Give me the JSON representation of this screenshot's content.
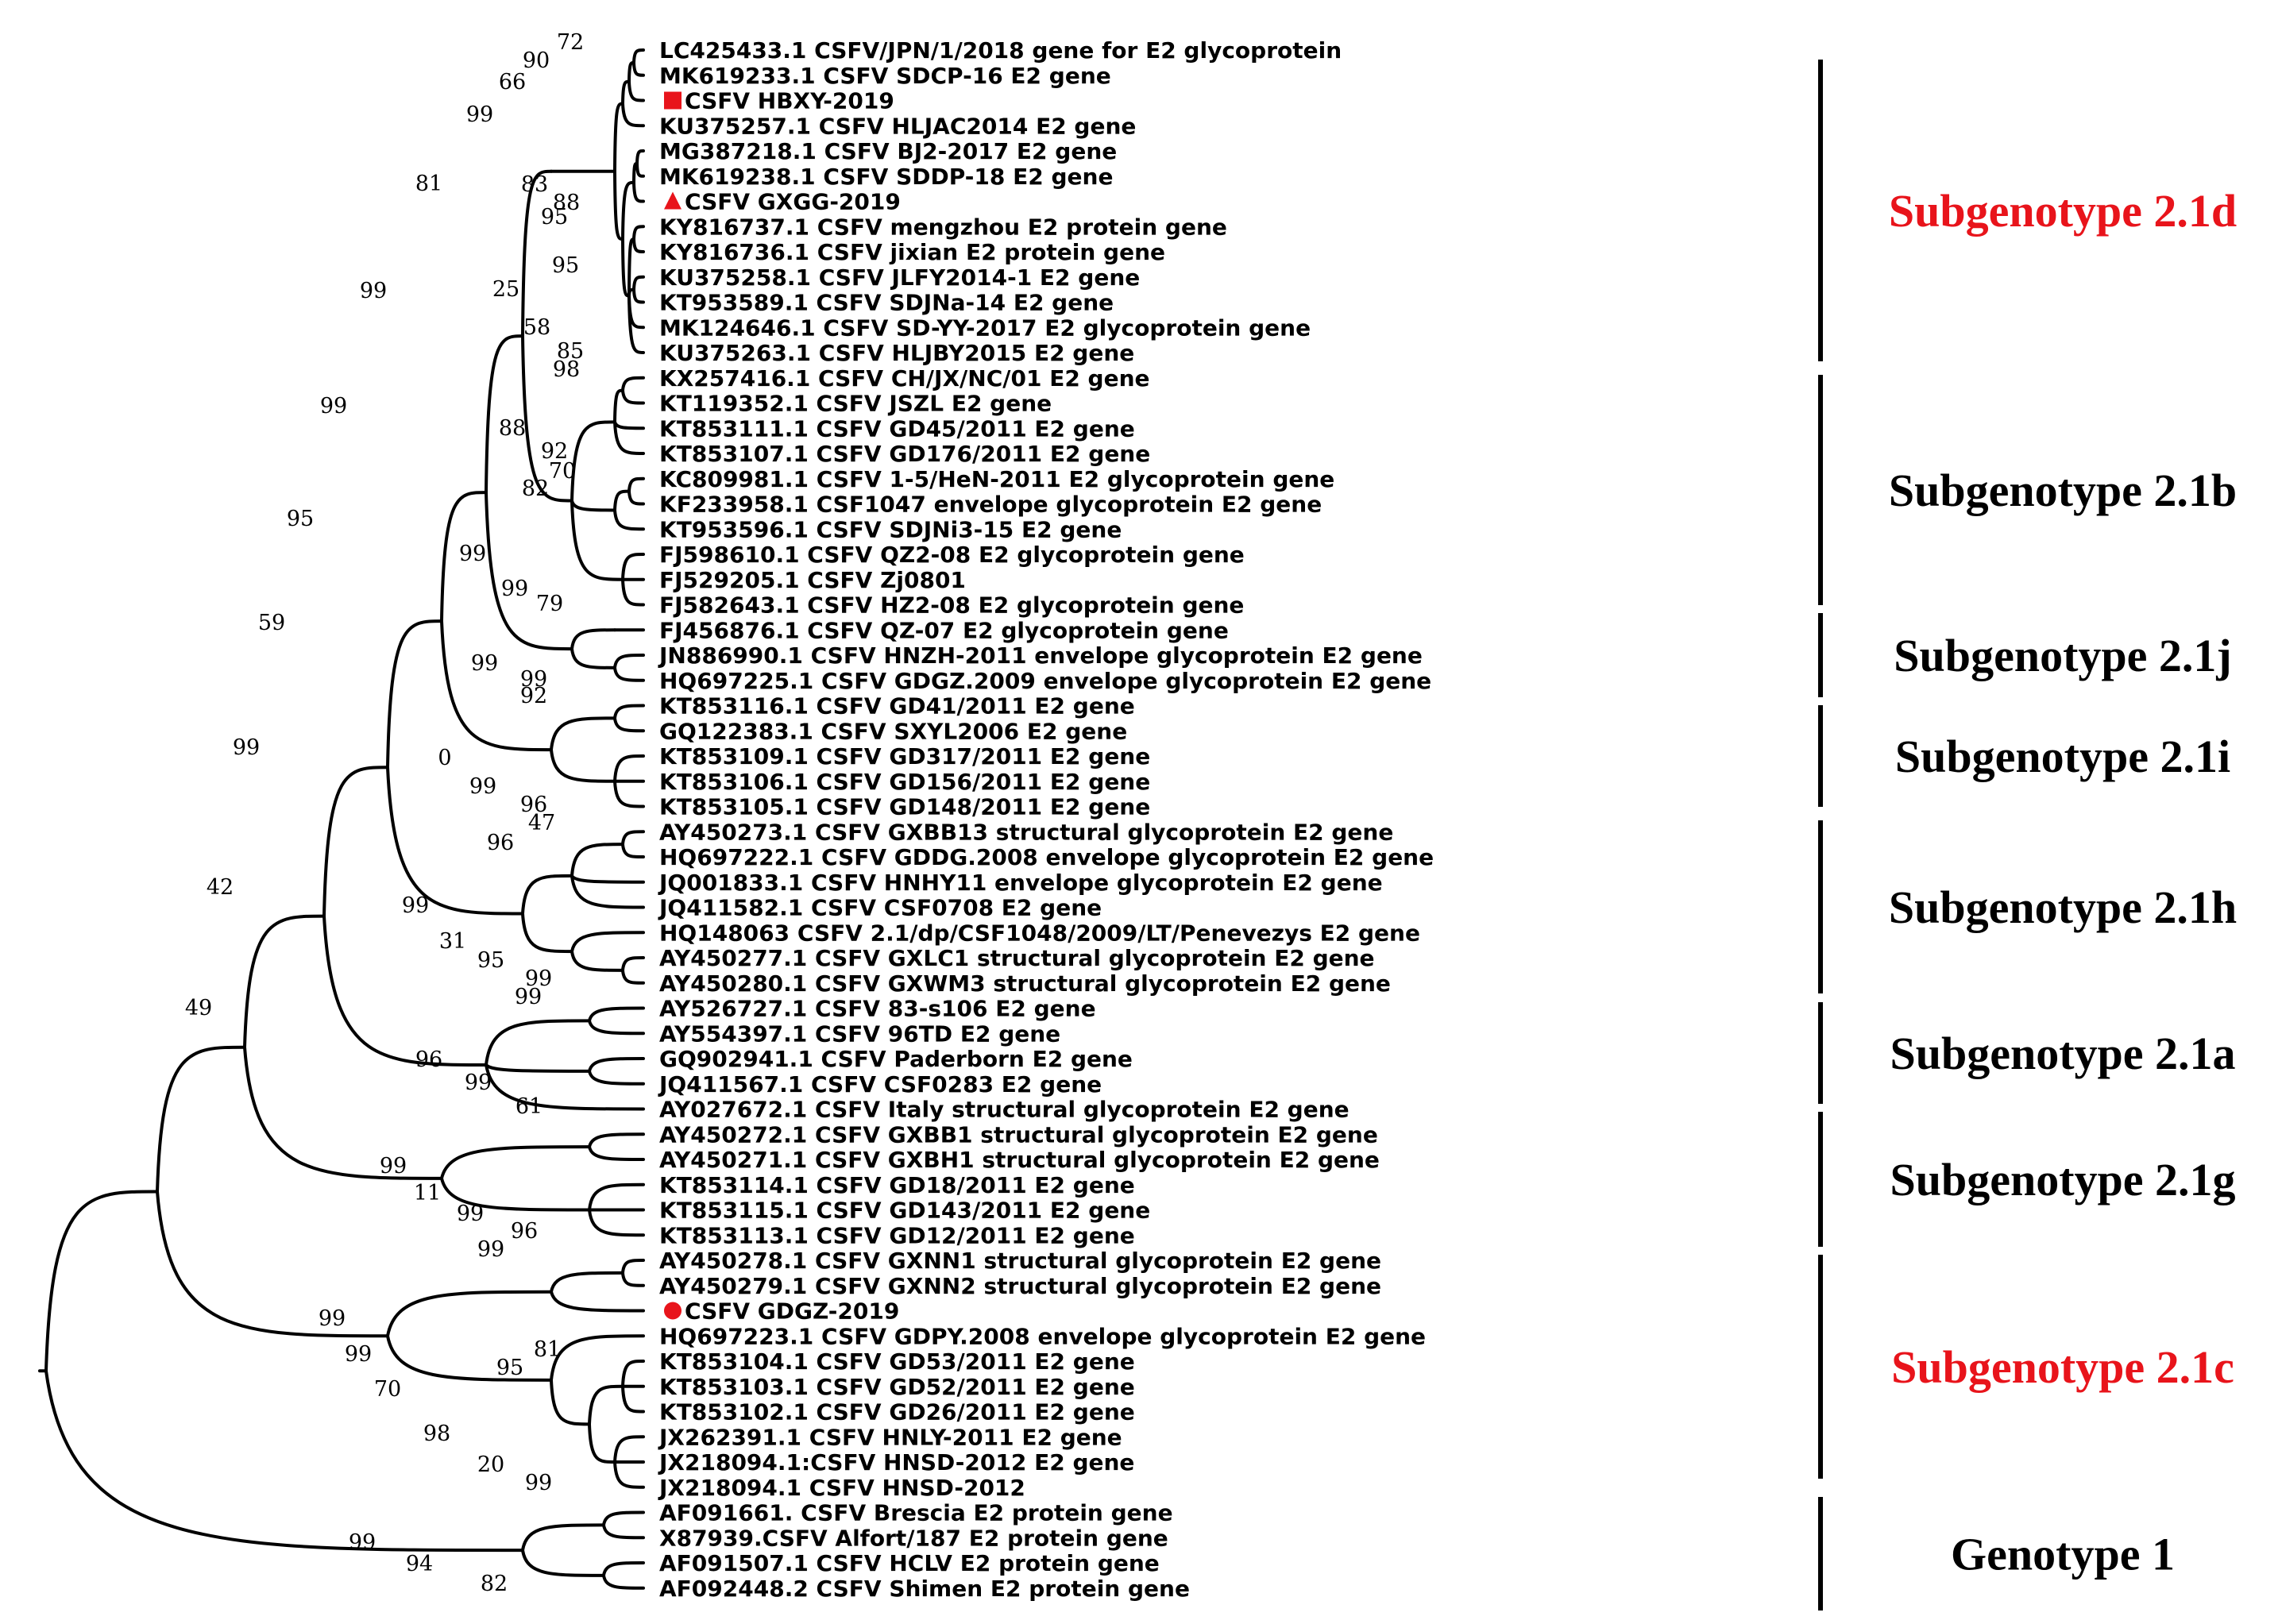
{
  "colors": {
    "ink": "#000000",
    "highlight": "#e8141b"
  },
  "leaves": [
    {
      "label": "LC425433.1 CSFV/JPN/1/2018 gene for E2 glycoprotein"
    },
    {
      "label": "MK619233.1 CSFV SDCP-16 E2 gene"
    },
    {
      "label": "CSFV HBXY-2019",
      "marker": "square"
    },
    {
      "label": "KU375257.1 CSFV HLJAC2014 E2 gene"
    },
    {
      "label": "MG387218.1 CSFV BJ2-2017 E2 gene"
    },
    {
      "label": "MK619238.1 CSFV SDDP-18 E2 gene"
    },
    {
      "label": "CSFV GXGG-2019",
      "marker": "triangle"
    },
    {
      "label": "KY816737.1 CSFV mengzhou E2 protein gene"
    },
    {
      "label": "KY816736.1 CSFV jixian E2 protein gene"
    },
    {
      "label": "KU375258.1 CSFV JLFY2014-1 E2 gene"
    },
    {
      "label": "KT953589.1 CSFV SDJNa-14 E2 gene"
    },
    {
      "label": "MK124646.1 CSFV SD-YY-2017 E2 glycoprotein gene"
    },
    {
      "label": "KU375263.1 CSFV HLJBY2015 E2 gene"
    },
    {
      "label": "KX257416.1 CSFV CH/JX/NC/01 E2 gene"
    },
    {
      "label": "KT119352.1 CSFV JSZL E2 gene"
    },
    {
      "label": "KT853111.1 CSFV GD45/2011 E2 gene"
    },
    {
      "label": "KT853107.1 CSFV GD176/2011 E2 gene"
    },
    {
      "label": "KC809981.1 CSFV 1-5/HeN-2011 E2 glycoprotein gene"
    },
    {
      "label": "KF233958.1 CSF1047 envelope glycoprotein E2 gene"
    },
    {
      "label": "KT953596.1 CSFV SDJNi3-15 E2 gene"
    },
    {
      "label": "FJ598610.1 CSFV QZ2-08 E2 glycoprotein gene"
    },
    {
      "label": "FJ529205.1 CSFV Zj0801"
    },
    {
      "label": "FJ582643.1 CSFV HZ2-08 E2 glycoprotein gene"
    },
    {
      "label": "FJ456876.1 CSFV QZ-07 E2 glycoprotein gene"
    },
    {
      "label": "JN886990.1 CSFV HNZH-2011 envelope glycoprotein E2 gene"
    },
    {
      "label": "HQ697225.1 CSFV GDGZ.2009 envelope glycoprotein E2 gene"
    },
    {
      "label": "KT853116.1 CSFV GD41/2011 E2 gene"
    },
    {
      "label": "GQ122383.1 CSFV SXYL2006 E2 gene"
    },
    {
      "label": "KT853109.1 CSFV GD317/2011 E2 gene"
    },
    {
      "label": "KT853106.1 CSFV GD156/2011 E2 gene"
    },
    {
      "label": "KT853105.1 CSFV GD148/2011 E2 gene"
    },
    {
      "label": "AY450273.1 CSFV GXBB13 structural glycoprotein E2 gene"
    },
    {
      "label": "HQ697222.1 CSFV GDDG.2008 envelope glycoprotein E2 gene"
    },
    {
      "label": "JQ001833.1 CSFV HNHY11 envelope glycoprotein E2 gene"
    },
    {
      "label": "JQ411582.1 CSFV CSF0708 E2 gene"
    },
    {
      "label": "HQ148063 CSFV 2.1/dp/CSF1048/2009/LT/Penevezys E2 gene"
    },
    {
      "label": "AY450277.1 CSFV GXLC1 structural glycoprotein E2 gene"
    },
    {
      "label": "AY450280.1 CSFV GXWM3 structural glycoprotein E2 gene"
    },
    {
      "label": "AY526727.1 CSFV 83-s106 E2 gene"
    },
    {
      "label": "AY554397.1 CSFV 96TD E2 gene"
    },
    {
      "label": "GQ902941.1 CSFV Paderborn E2 gene"
    },
    {
      "label": "JQ411567.1 CSFV CSF0283 E2 gene"
    },
    {
      "label": "AY027672.1 CSFV Italy structural glycoprotein E2 gene"
    },
    {
      "label": "AY450272.1 CSFV GXBB1 structural glycoprotein E2 gene"
    },
    {
      "label": "AY450271.1 CSFV GXBH1 structural glycoprotein E2 gene"
    },
    {
      "label": "KT853114.1 CSFV GD18/2011 E2 gene"
    },
    {
      "label": "KT853115.1 CSFV GD143/2011 E2 gene"
    },
    {
      "label": "KT853113.1 CSFV GD12/2011 E2 gene"
    },
    {
      "label": "AY450278.1 CSFV GXNN1 structural glycoprotein E2 gene"
    },
    {
      "label": "AY450279.1 CSFV GXNN2 structural glycoprotein E2 gene"
    },
    {
      "label": "CSFV GDGZ-2019",
      "marker": "circle"
    },
    {
      "label": "HQ697223.1 CSFV GDPY.2008 envelope glycoprotein E2 gene"
    },
    {
      "label": "KT853104.1 CSFV GD53/2011 E2 gene"
    },
    {
      "label": "KT853103.1 CSFV GD52/2011 E2 gene"
    },
    {
      "label": "KT853102.1 CSFV GD26/2011 E2 gene"
    },
    {
      "label": "JX262391.1 CSFV HNLY-2011 E2 gene"
    },
    {
      "label": "JX218094.1:CSFV HNSD-2012 E2 gene"
    },
    {
      "label": "JX218094.1 CSFV HNSD-2012"
    },
    {
      "label": "AF091661. CSFV Brescia E2 protein gene"
    },
    {
      "label": "X87939.CSFV Alfort/187 E2 protein gene"
    },
    {
      "label": "AF091507.1 CSFV HCLV E2 protein gene"
    },
    {
      "label": "AF092448.2 CSFV Shimen E2 protein gene"
    }
  ],
  "bootstrap_values": [
    "72",
    "90",
    "66",
    "99",
    "83",
    "88",
    "95",
    "95",
    "81",
    "25",
    "58",
    "85",
    "99",
    "98",
    "99",
    "88",
    "92",
    "70",
    "82",
    "95",
    "99",
    "99",
    "79",
    "59",
    "99",
    "99",
    "92",
    "0",
    "99",
    "96",
    "99",
    "47",
    "96",
    "42",
    "99",
    "31",
    "95",
    "99",
    "49",
    "99",
    "96",
    "99",
    "61",
    "99",
    "11",
    "99",
    "96",
    "99",
    "99",
    "81",
    "99",
    "95",
    "70",
    "98",
    "20",
    "99",
    "99",
    "94",
    "82"
  ],
  "groups": [
    {
      "label": "Subgenotype 2.1d",
      "highlight": true
    },
    {
      "label": "Subgenotype 2.1b",
      "highlight": false
    },
    {
      "label": "Subgenotype 2.1j",
      "highlight": false
    },
    {
      "label": "Subgenotype 2.1i",
      "highlight": false
    },
    {
      "label": "Subgenotype 2.1h",
      "highlight": false
    },
    {
      "label": "Subgenotype 2.1a",
      "highlight": false
    },
    {
      "label": "Subgenotype 2.1g",
      "highlight": false
    },
    {
      "label": "Subgenotype 2.1c",
      "highlight": true
    },
    {
      "label": "Genotype 1",
      "highlight": false
    }
  ]
}
